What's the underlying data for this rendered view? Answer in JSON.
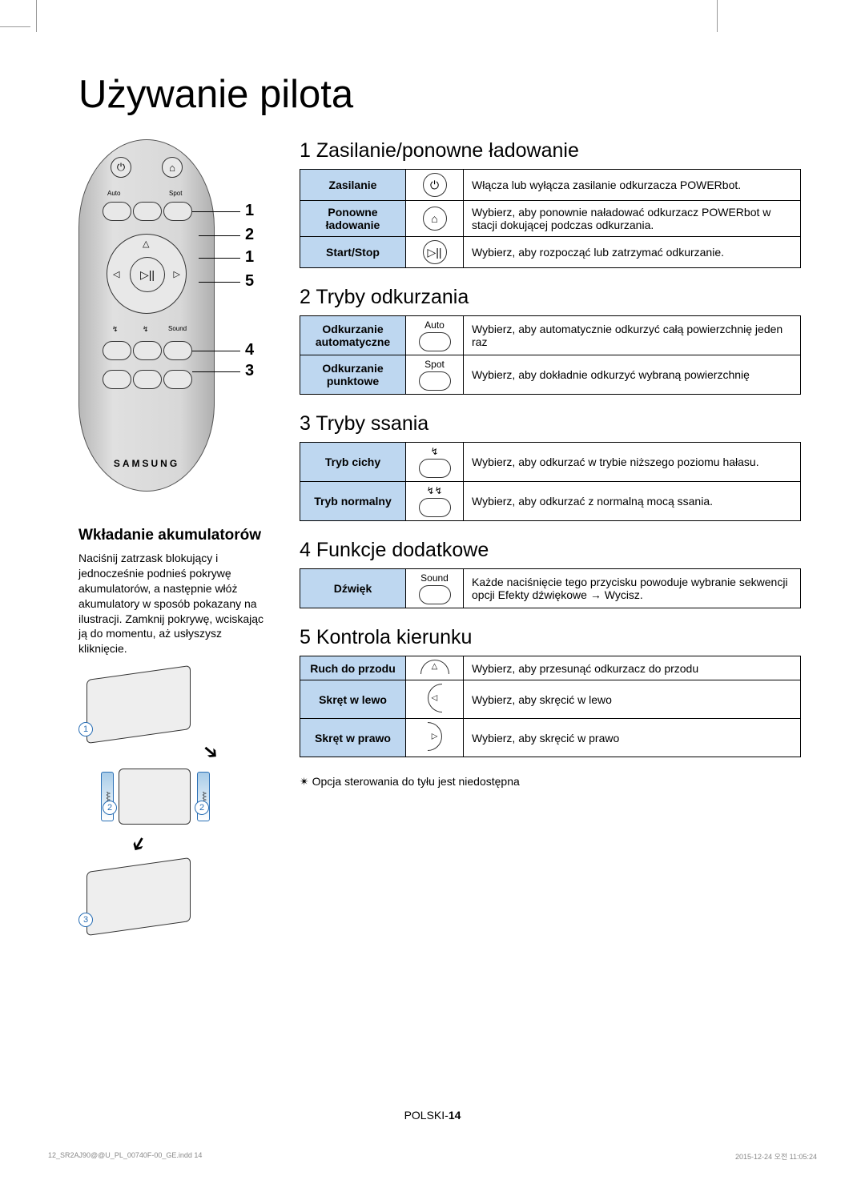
{
  "pageTitle": "Używanie pilota",
  "remote": {
    "autoLabel": "Auto",
    "spotLabel": "Spot",
    "soundLabel": "Sound",
    "brand": "SAMSUNG",
    "callouts": [
      "1",
      "2",
      "1",
      "5",
      "4",
      "3"
    ]
  },
  "battery": {
    "heading": "Wkładanie akumulatorów",
    "text": "Naciśnij zatrzask blokujący i jednocześnie podnieś pokrywę akumulatorów, a następnie włóż akumulatory w sposób pokazany na ilustracji. Zamknij pokrywę, wciskając ją do momentu, aż usłyszysz kliknięcie.",
    "steps": [
      "1",
      "2",
      "2",
      "3"
    ],
    "aaa": "AAA"
  },
  "sections": [
    {
      "heading": "1 Zasilanie/ponowne ładowanie",
      "rows": [
        {
          "label": "Zasilanie",
          "icon": "power",
          "desc": "Włącza lub wyłącza zasilanie odkurzacza POWERbot."
        },
        {
          "label": "Ponowne ładowanie",
          "icon": "home",
          "desc": "Wybierz, aby ponownie naładować odkurzacz POWERbot w stacji dokującej podczas odkurzania."
        },
        {
          "label": "Start/Stop",
          "icon": "playpause",
          "desc": "Wybierz, aby rozpocząć lub zatrzymać odkurzanie."
        }
      ]
    },
    {
      "heading": "2 Tryby odkurzania",
      "rows": [
        {
          "label": "Odkurzanie automatyczne",
          "icon": "pill",
          "iconLabel": "Auto",
          "desc": "Wybierz, aby automatycznie odkurzyć całą powierzchnię jeden raz"
        },
        {
          "label": "Odkurzanie punktowe",
          "icon": "pill",
          "iconLabel": "Spot",
          "desc": "Wybierz, aby dokładnie odkurzyć wybraną powierzchnię"
        }
      ]
    },
    {
      "heading": "3 Tryby ssania",
      "rows": [
        {
          "label": "Tryb cichy",
          "icon": "pill",
          "iconLabel": "↯",
          "desc": "Wybierz, aby odkurzać w trybie niższego poziomu hałasu."
        },
        {
          "label": "Tryb normalny",
          "icon": "pill",
          "iconLabel": "↯↯",
          "desc": "Wybierz, aby odkurzać z normalną mocą ssania."
        }
      ]
    },
    {
      "heading": "4 Funkcje dodatkowe",
      "rows": [
        {
          "label": "Dźwięk",
          "icon": "pill",
          "iconLabel": "Sound",
          "desc": "Każde naciśnięcie tego przycisku powoduje wybranie sekwencji opcji Efekty dźwiękowe → Wycisz."
        }
      ]
    },
    {
      "heading": "5 Kontrola kierunku",
      "rows": [
        {
          "label": "Ruch do przodu",
          "icon": "arc-up",
          "desc": "Wybierz, aby przesunąć odkurzacz do przodu"
        },
        {
          "label": "Skręt w lewo",
          "icon": "arc-left",
          "desc": "Wybierz, aby skręcić w lewo"
        },
        {
          "label": "Skręt w prawo",
          "icon": "arc-right",
          "desc": "Wybierz, aby skręcić w prawo"
        }
      ],
      "note": "✴ Opcja sterowania do tyłu jest niedostępna"
    }
  ],
  "footer": {
    "lang": "POLSKI-",
    "num": "14"
  },
  "indd": {
    "file": "12_SR2AJ90@@U_PL_00740F-00_GE.indd   14",
    "timestamp": "2015-12-24   오전 11:05:24"
  },
  "colors": {
    "tableHeader": "#bed7f0"
  }
}
